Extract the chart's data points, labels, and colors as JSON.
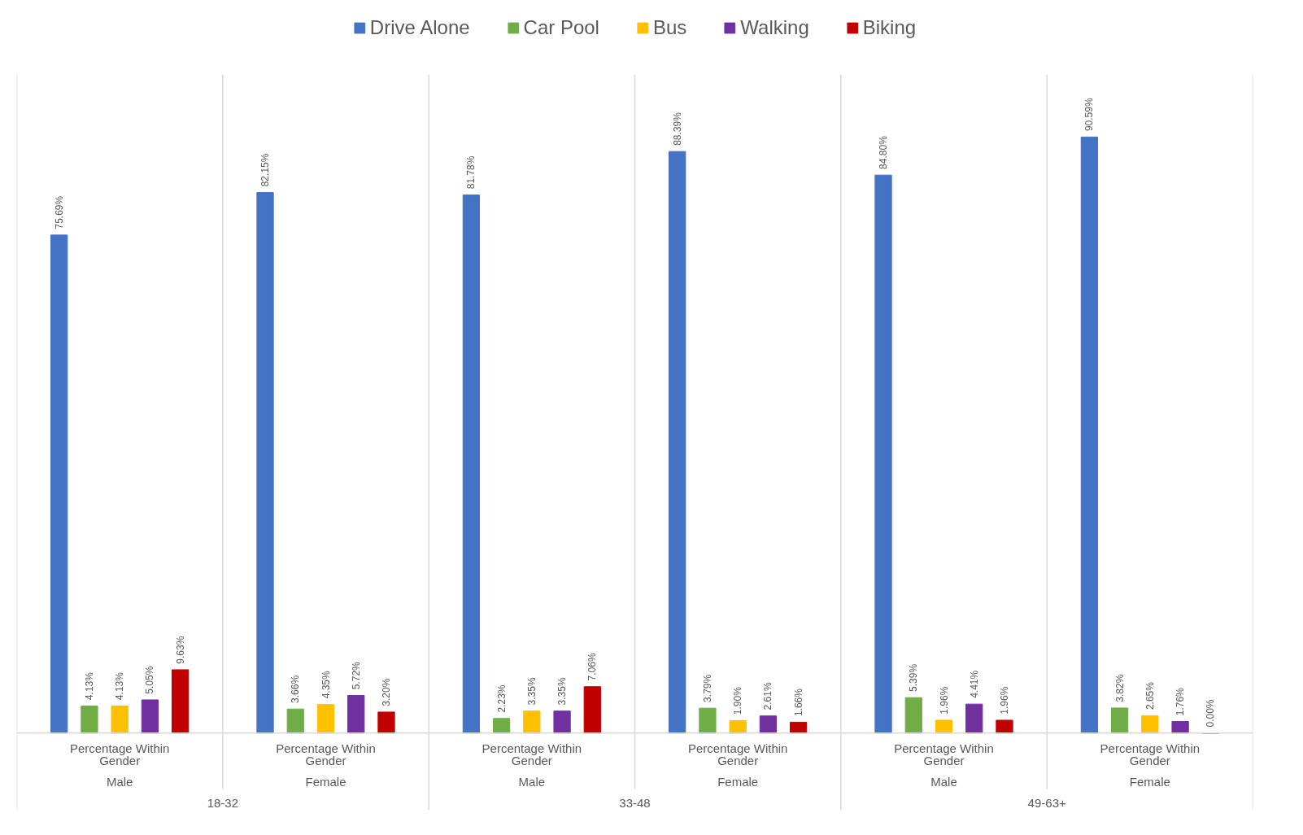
{
  "chart_data": {
    "type": "bar",
    "categories": [
      "Percentage Within Gender\nMale",
      "Percentage Within Gender\nFemale",
      "Percentage Within Gender\nMale",
      "Percentage Within Gender\nFemale",
      "Percentage Within Gender\nMale",
      "Percentage Within Gender\nFemale"
    ],
    "annotations": [
      "18-32",
      "33-48",
      "49-63+"
    ],
    "legend": "top",
    "grid": false,
    "series": [
      {
        "name": "Drive Alone",
        "color": "#4472c4",
        "values": [
          75.69,
          82.15,
          81.78,
          88.39,
          84.8,
          90.59
        ],
        "value_labels": [
          "75.69%",
          "82.15%",
          "81.78%",
          "88.39%",
          "84.80%",
          "90.59%"
        ]
      },
      {
        "name": "Car Pool",
        "color": "#70ad47",
        "values": [
          4.13,
          3.66,
          2.23,
          3.79,
          5.39,
          3.82
        ],
        "value_labels": [
          "4.13%",
          "3.66%",
          "2.23%",
          "3.79%",
          "5.39%",
          "3.82%"
        ]
      },
      {
        "name": "Bus",
        "color": "#ffc000",
        "values": [
          4.13,
          4.35,
          3.35,
          1.9,
          1.96,
          2.65
        ],
        "value_labels": [
          "4.13%",
          "4.35%",
          "3.35%",
          "1.90%",
          "1.96%",
          "2.65%"
        ]
      },
      {
        "name": "Walking",
        "color": "#7030a0",
        "values": [
          5.05,
          5.72,
          3.35,
          2.61,
          4.41,
          1.76
        ],
        "value_labels": [
          "5.05%",
          "5.72%",
          "3.35%",
          "2.61%",
          "4.41%",
          "1.76%"
        ]
      },
      {
        "name": "Biking",
        "color": "#c00000",
        "values": [
          9.63,
          3.2,
          7.06,
          1.66,
          1.96,
          0.0
        ],
        "value_labels": [
          "9.63%",
          "3.20%",
          "7.06%",
          "1.66%",
          "1.96%",
          "0.00%"
        ]
      }
    ]
  }
}
